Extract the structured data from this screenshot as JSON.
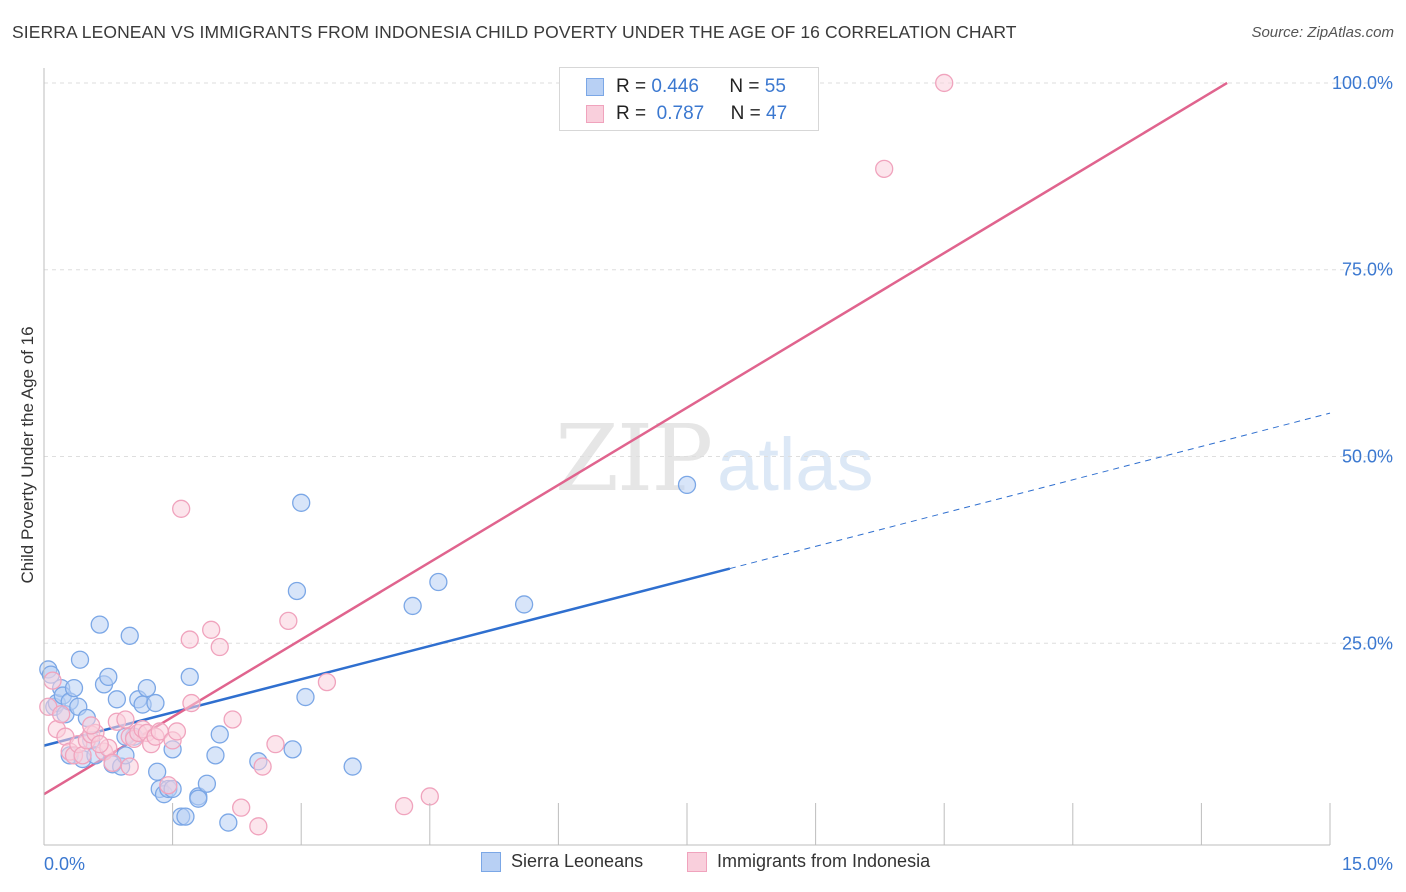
{
  "chart_data": {
    "type": "scatter",
    "title": "SIERRA LEONEAN VS IMMIGRANTS FROM INDONESIA CHILD POVERTY UNDER THE AGE OF 16 CORRELATION CHART",
    "source": "Source: ZipAtlas.com",
    "xlabel": "",
    "ylabel": "Child Poverty Under the Age of 16",
    "xlim": [
      0,
      15
    ],
    "ylim": [
      -2,
      102
    ],
    "x_tick_labels": [
      "0.0%",
      "15.0%"
    ],
    "y_ticks": [
      {
        "value": 25,
        "label": "25.0%"
      },
      {
        "value": 50,
        "label": "50.0%"
      },
      {
        "value": 75,
        "label": "75.0%"
      },
      {
        "value": 100,
        "label": "100.0%"
      }
    ],
    "grid": true,
    "legend_position": "top-center",
    "watermark": {
      "part1": "ZIP",
      "part2": "atlas"
    },
    "series": [
      {
        "name": "Sierra Leoneans",
        "color": "#7ba7e6",
        "fill": "#b8d0f4",
        "line_color": "#2f6fcf",
        "R": "0.446",
        "N": "55",
        "trend": {
          "x0": 0,
          "y0": 11.3,
          "x1": 8,
          "y1": 35,
          "dash_to_x": 15,
          "dash_to_y": 55.8
        },
        "points": [
          [
            0.05,
            21.5
          ],
          [
            0.08,
            20.8
          ],
          [
            0.12,
            16.5
          ],
          [
            0.15,
            17.0
          ],
          [
            0.2,
            19.0
          ],
          [
            0.22,
            18.0
          ],
          [
            0.25,
            15.5
          ],
          [
            0.3,
            17.2
          ],
          [
            0.3,
            10.0
          ],
          [
            0.35,
            19.0
          ],
          [
            0.4,
            16.5
          ],
          [
            0.42,
            22.8
          ],
          [
            0.45,
            9.5
          ],
          [
            0.5,
            15.0
          ],
          [
            0.55,
            12.0
          ],
          [
            0.65,
            27.5
          ],
          [
            0.7,
            19.5
          ],
          [
            0.75,
            20.5
          ],
          [
            0.8,
            8.8
          ],
          [
            0.85,
            17.5
          ],
          [
            0.9,
            8.5
          ],
          [
            0.95,
            10.0
          ],
          [
            1.0,
            26.0
          ],
          [
            1.05,
            12.5
          ],
          [
            1.1,
            17.5
          ],
          [
            1.15,
            16.8
          ],
          [
            1.2,
            19.0
          ],
          [
            1.3,
            17.0
          ],
          [
            1.32,
            7.8
          ],
          [
            1.35,
            5.5
          ],
          [
            1.4,
            4.8
          ],
          [
            1.45,
            5.5
          ],
          [
            1.5,
            10.8
          ],
          [
            1.5,
            5.5
          ],
          [
            1.6,
            1.8
          ],
          [
            1.65,
            1.8
          ],
          [
            1.7,
            20.5
          ],
          [
            1.8,
            4.5
          ],
          [
            1.9,
            6.2
          ],
          [
            2.0,
            10.0
          ],
          [
            2.05,
            12.8
          ],
          [
            2.15,
            1.0
          ],
          [
            2.5,
            9.2
          ],
          [
            2.9,
            10.8
          ],
          [
            2.95,
            32.0
          ],
          [
            3.0,
            43.8
          ],
          [
            3.05,
            17.8
          ],
          [
            3.6,
            8.5
          ],
          [
            4.3,
            30.0
          ],
          [
            4.6,
            33.2
          ],
          [
            5.6,
            30.2
          ],
          [
            7.5,
            46.2
          ],
          [
            0.6,
            10.0
          ],
          [
            1.8,
            4.2
          ],
          [
            0.95,
            12.5
          ]
        ]
      },
      {
        "name": "Immigrants from Indonesia",
        "color": "#f0a3bd",
        "fill": "#f9cfdc",
        "line_color": "#e0648e",
        "R": "0.787",
        "N": "47",
        "trend": {
          "x0": 0,
          "y0": 4.8,
          "x1": 13.8,
          "y1": 100
        },
        "points": [
          [
            0.05,
            16.5
          ],
          [
            0.1,
            20.0
          ],
          [
            0.15,
            13.5
          ],
          [
            0.2,
            15.5
          ],
          [
            0.25,
            12.5
          ],
          [
            0.3,
            10.5
          ],
          [
            0.35,
            10.0
          ],
          [
            0.4,
            11.5
          ],
          [
            0.45,
            10.0
          ],
          [
            0.5,
            12.0
          ],
          [
            0.55,
            12.8
          ],
          [
            0.6,
            13.0
          ],
          [
            0.7,
            10.5
          ],
          [
            0.75,
            11.0
          ],
          [
            0.8,
            9.0
          ],
          [
            0.85,
            14.5
          ],
          [
            0.95,
            14.8
          ],
          [
            1.0,
            12.5
          ],
          [
            1.05,
            12.2
          ],
          [
            1.1,
            13.0
          ],
          [
            1.15,
            13.5
          ],
          [
            1.2,
            13.0
          ],
          [
            1.25,
            11.5
          ],
          [
            1.3,
            12.5
          ],
          [
            1.35,
            13.2
          ],
          [
            1.45,
            6.0
          ],
          [
            1.5,
            12.0
          ],
          [
            1.55,
            13.2
          ],
          [
            1.6,
            43.0
          ],
          [
            1.7,
            25.5
          ],
          [
            1.72,
            17.0
          ],
          [
            1.95,
            26.8
          ],
          [
            2.05,
            24.5
          ],
          [
            2.2,
            14.8
          ],
          [
            2.3,
            3.0
          ],
          [
            2.5,
            0.5
          ],
          [
            2.55,
            8.5
          ],
          [
            2.7,
            11.5
          ],
          [
            2.85,
            28.0
          ],
          [
            3.3,
            19.8
          ],
          [
            4.2,
            3.2
          ],
          [
            4.5,
            4.5
          ],
          [
            9.8,
            88.5
          ],
          [
            10.5,
            100.0
          ],
          [
            0.55,
            14.0
          ],
          [
            1.0,
            8.5
          ],
          [
            0.65,
            11.5
          ]
        ]
      }
    ]
  }
}
